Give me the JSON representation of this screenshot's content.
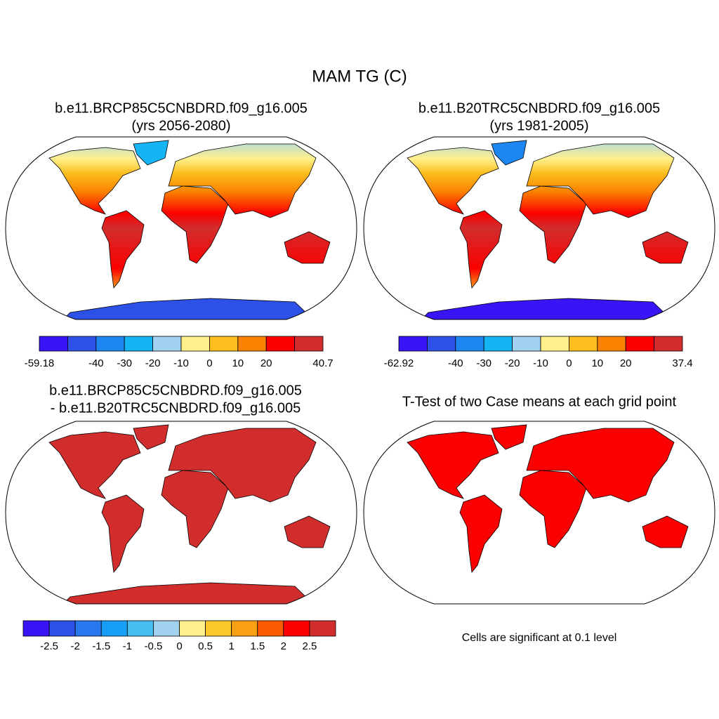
{
  "title": "MAM TG (C)",
  "panels": [
    {
      "title": "b.e11.BRCP85C5CNBDRD.f09_g16.005",
      "subtitle": "(yrs 2056-2080)",
      "colorbar": {
        "colors": [
          "#3a14f5",
          "#2d50e6",
          "#1e86f0",
          "#14b4f5",
          "#a0d2f0",
          "#fff08c",
          "#fbbe1e",
          "#fa8200",
          "#fa0000",
          "#d22d2d"
        ],
        "boundaries": [
          -59.18,
          null,
          -40,
          -30,
          -20,
          -10,
          0,
          10,
          20,
          null,
          40.7
        ]
      }
    },
    {
      "title": "b.e11.B20TRC5CNBDRD.f09_g16.005",
      "subtitle": "(yrs 1981-2005)",
      "colorbar": {
        "colors": [
          "#3a14f5",
          "#2d50e6",
          "#1e86f0",
          "#14b4f5",
          "#a0d2f0",
          "#fff08c",
          "#fbbe1e",
          "#fa8200",
          "#fa0000",
          "#d22d2d"
        ],
        "boundaries": [
          -62.92,
          null,
          -40,
          -30,
          -20,
          -10,
          0,
          10,
          20,
          null,
          37.4
        ]
      }
    },
    {
      "title": "b.e11.BRCP85C5CNBDRD.f09_g16.005",
      "subtitle": "- b.e11.B20TRC5CNBDRD.f09_g16.005",
      "colorbar": {
        "colors": [
          "#3a14f5",
          "#2d50e6",
          "#2878f0",
          "#149ff5",
          "#46beef",
          "#a0d2f0",
          "#fff08c",
          "#fcc829",
          "#fca013",
          "#fb5a00",
          "#fa0000",
          "#d22d2d"
        ],
        "boundaries": [
          null,
          -2.5,
          -2,
          -1.5,
          -1,
          -0.5,
          0,
          0.5,
          1,
          1.5,
          2,
          2.5,
          null
        ]
      }
    },
    {
      "title": "T-Test of two Case means at each grid point",
      "note": "Cells are significant at 0.1 level"
    }
  ]
}
